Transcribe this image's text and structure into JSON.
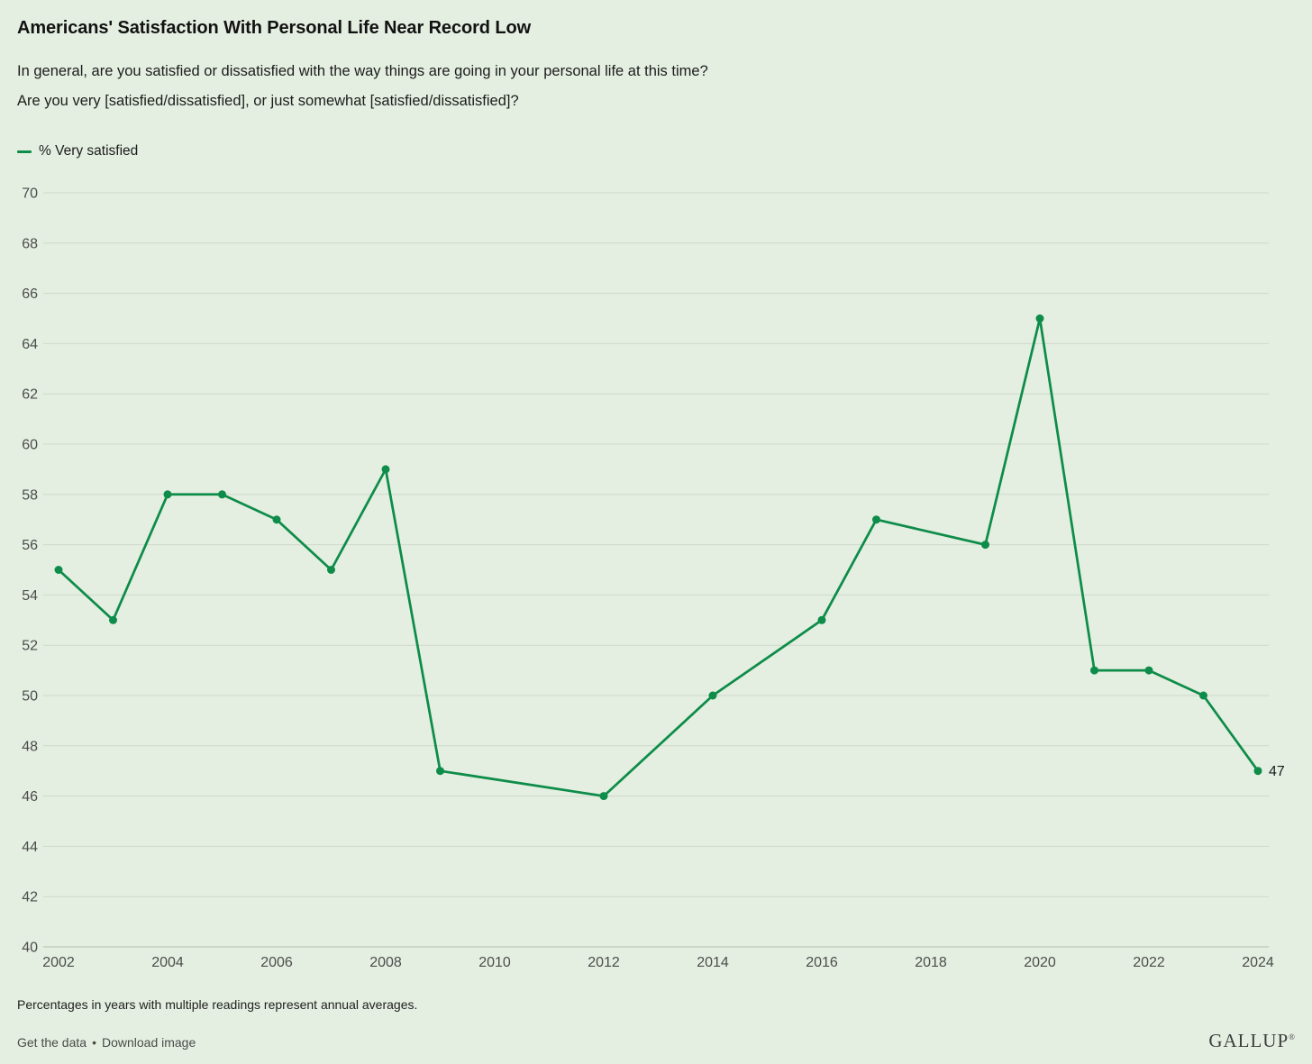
{
  "header": {
    "title": "Americans' Satisfaction With Personal Life Near Record Low",
    "question_line1": "In general, are you satisfied or dissatisfied with the way things are going in your personal life at this time?",
    "question_line2": "Are you very [satisfied/dissatisfied], or just somewhat [satisfied/dissatisfied]?"
  },
  "legend": {
    "label": "% Very satisfied"
  },
  "chart_data": {
    "type": "line",
    "title": "Americans' Satisfaction With Personal Life Near Record Low",
    "series": [
      {
        "name": "% Very satisfied",
        "points": [
          [
            2002,
            55
          ],
          [
            2003,
            53
          ],
          [
            2004,
            58
          ],
          [
            2005,
            58
          ],
          [
            2006,
            57
          ],
          [
            2007,
            55
          ],
          [
            2008,
            59
          ],
          [
            2009,
            47
          ],
          [
            2012,
            46
          ],
          [
            2014,
            50
          ],
          [
            2016,
            53
          ],
          [
            2017,
            57
          ],
          [
            2019,
            56
          ],
          [
            2020,
            65
          ],
          [
            2021,
            51
          ],
          [
            2022,
            51
          ],
          [
            2023,
            50
          ],
          [
            2024,
            47
          ]
        ]
      }
    ],
    "xlim": [
      2002,
      2024
    ],
    "ylim": [
      40,
      70
    ],
    "x_ticks": [
      2002,
      2004,
      2006,
      2008,
      2010,
      2012,
      2014,
      2016,
      2018,
      2020,
      2022,
      2024
    ],
    "y_ticks": [
      40,
      42,
      44,
      46,
      48,
      50,
      52,
      54,
      56,
      58,
      60,
      62,
      64,
      66,
      68,
      70
    ],
    "grid": true,
    "legend_position": "top-left",
    "end_label": "47"
  },
  "footnote": "Percentages in years with multiple readings represent annual averages.",
  "footer": {
    "get_data_label": "Get the data",
    "separator": "•",
    "download_label": "Download image",
    "brand": "GALLUP",
    "brand_mark": "®"
  },
  "colors": {
    "background": "#e4efe1",
    "line": "#0e8c49",
    "grid": "#cfd8cb",
    "axis": "#b5beb2",
    "tick_text": "#4c4c4c",
    "text": "#1a1a1a",
    "muted_text": "#4a4a4a"
  }
}
